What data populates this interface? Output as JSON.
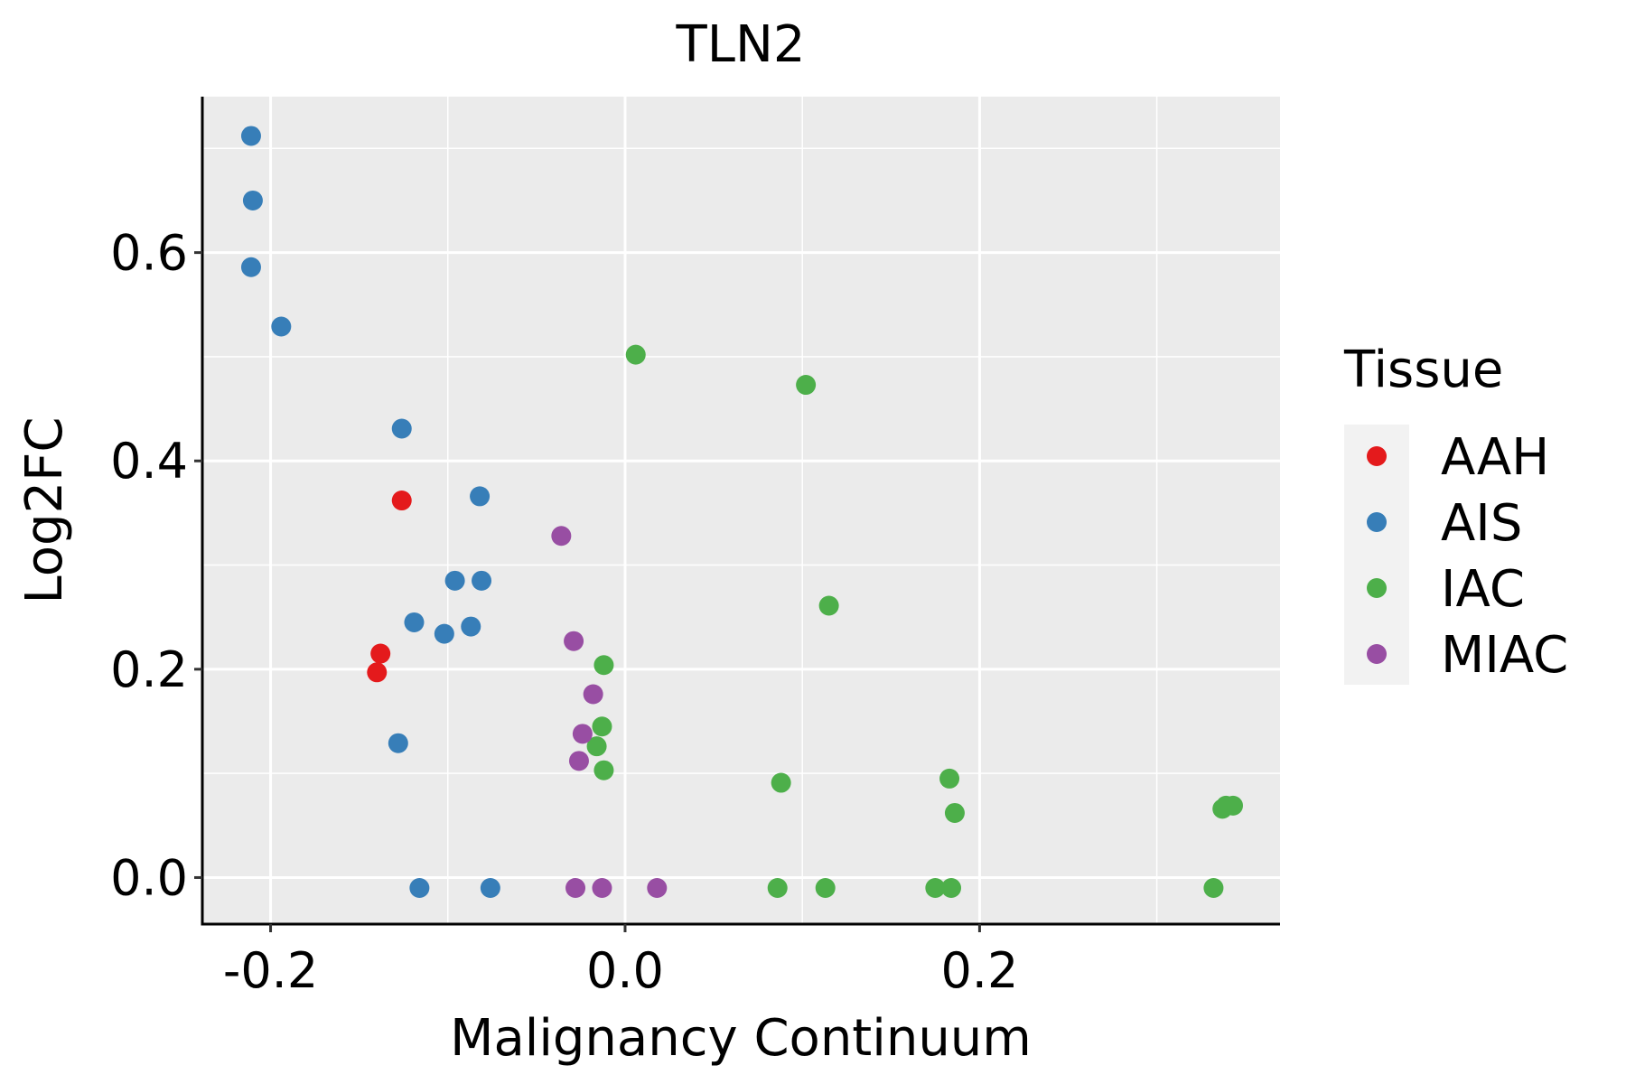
{
  "chart_data": {
    "type": "scatter",
    "title": "TLN2",
    "xlabel": "Malignancy Continuum",
    "ylabel": "Log2FC",
    "xlim": [
      -0.2385,
      0.3695
    ],
    "ylim": [
      -0.0447,
      0.7497
    ],
    "xticks": [
      {
        "v": -0.2,
        "label": "-0.2"
      },
      {
        "v": 0.0,
        "label": "0.0"
      },
      {
        "v": 0.2,
        "label": "0.2"
      }
    ],
    "yticks": [
      {
        "v": 0.0,
        "label": "0.0"
      },
      {
        "v": 0.2,
        "label": "0.2"
      },
      {
        "v": 0.4,
        "label": "0.4"
      },
      {
        "v": 0.6,
        "label": "0.6"
      }
    ],
    "xminor": [
      -0.1,
      0.1,
      0.3
    ],
    "yminor": [
      0.1,
      0.3,
      0.5,
      0.7
    ],
    "grid": true,
    "legend": {
      "title": "Tissue",
      "placement": "right"
    },
    "series": [
      {
        "name": "AAH",
        "color": "#E41A1C",
        "points": [
          [
            -0.126,
            0.362
          ],
          [
            -0.138,
            0.215
          ],
          [
            -0.14,
            0.197
          ]
        ]
      },
      {
        "name": "AIS",
        "color": "#377EB8",
        "points": [
          [
            -0.211,
            0.712
          ],
          [
            -0.21,
            0.65
          ],
          [
            -0.211,
            0.586
          ],
          [
            -0.194,
            0.529
          ],
          [
            -0.126,
            0.431
          ],
          [
            -0.082,
            0.366
          ],
          [
            -0.096,
            0.285
          ],
          [
            -0.081,
            0.285
          ],
          [
            -0.119,
            0.245
          ],
          [
            -0.102,
            0.234
          ],
          [
            -0.087,
            0.241
          ],
          [
            -0.128,
            0.129
          ],
          [
            -0.116,
            -0.01
          ],
          [
            -0.076,
            -0.01
          ]
        ]
      },
      {
        "name": "IAC",
        "color": "#4DAF4A",
        "points": [
          [
            0.006,
            0.502
          ],
          [
            0.102,
            0.473
          ],
          [
            0.115,
            0.261
          ],
          [
            -0.012,
            0.204
          ],
          [
            -0.013,
            0.145
          ],
          [
            -0.016,
            0.126
          ],
          [
            -0.012,
            0.103
          ],
          [
            0.088,
            0.091
          ],
          [
            0.183,
            0.095
          ],
          [
            0.186,
            0.062
          ],
          [
            0.337,
            0.066
          ],
          [
            0.339,
            0.069
          ],
          [
            0.343,
            0.069
          ],
          [
            0.086,
            -0.01
          ],
          [
            0.113,
            -0.01
          ],
          [
            0.175,
            -0.01
          ],
          [
            0.184,
            -0.01
          ],
          [
            0.332,
            -0.01
          ]
        ]
      },
      {
        "name": "MIAC",
        "color": "#984EA3",
        "points": [
          [
            -0.036,
            0.328
          ],
          [
            -0.029,
            0.227
          ],
          [
            -0.018,
            0.176
          ],
          [
            -0.024,
            0.138
          ],
          [
            -0.026,
            0.112
          ],
          [
            -0.028,
            -0.01
          ],
          [
            -0.013,
            -0.01
          ],
          [
            0.018,
            -0.01
          ]
        ]
      }
    ]
  }
}
